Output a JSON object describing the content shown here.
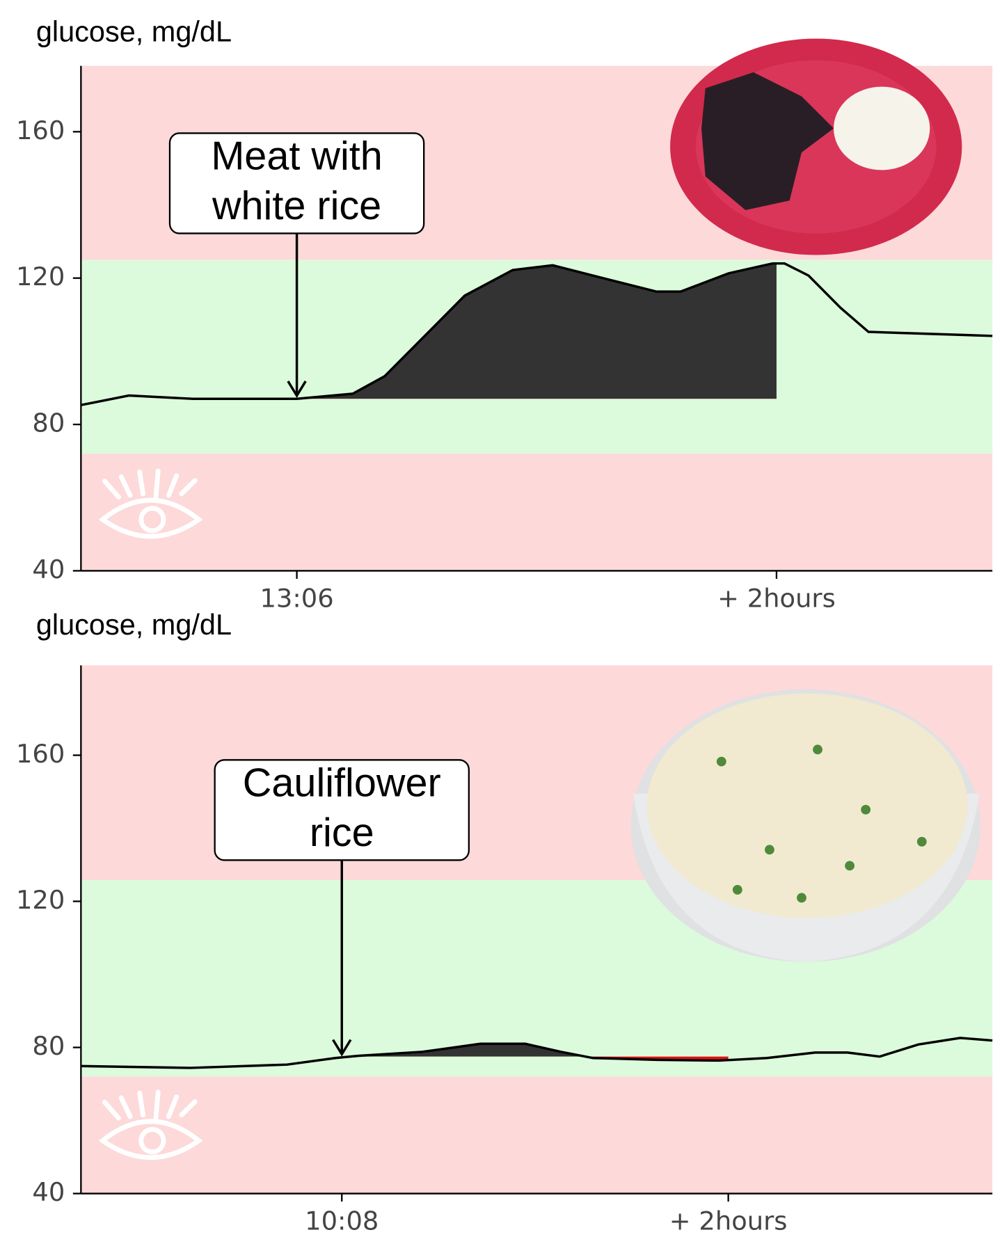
{
  "chart_data": [
    {
      "type": "area",
      "y_label": "glucose, mg/dL",
      "xlim": [
        -54,
        174
      ],
      "xticks": [
        {
          "value": 0,
          "label": "13:06"
        },
        {
          "value": 120,
          "label": "+ 2hours"
        }
      ],
      "ylim": [
        40,
        178
      ],
      "yticks": [
        40,
        80,
        120,
        160
      ],
      "target_range": [
        72,
        125
      ],
      "x": [
        -54,
        -42,
        -26,
        0,
        14,
        22,
        32,
        42,
        54,
        64,
        78,
        90,
        96,
        108,
        119,
        122,
        128,
        136,
        143,
        174
      ],
      "values": [
        85.3,
        87.9,
        87,
        87,
        88.4,
        93.2,
        104.2,
        115.2,
        122.2,
        123.5,
        119.6,
        116.3,
        116.3,
        121.3,
        124,
        124,
        120.7,
        111.9,
        105.3,
        104.2
      ],
      "color": "#000000",
      "shade": {
        "x_range": [
          0,
          120
        ],
        "baseline": 87,
        "color": "#333333",
        "below_color": "#e01010"
      },
      "annotation": {
        "lines": [
          "Meat with",
          "white rice"
        ],
        "x": 0
      }
    },
    {
      "type": "area",
      "y_label": "glucose, mg/dL",
      "xlim": [
        -81,
        202
      ],
      "xticks": [
        {
          "value": 0,
          "label": "10:08"
        },
        {
          "value": 120,
          "label": "+ 2hours"
        }
      ],
      "ylim": [
        40,
        184.6
      ],
      "yticks": [
        40,
        80,
        120,
        160
      ],
      "target_range": [
        72,
        125.8
      ],
      "x": [
        -81,
        -47,
        -17,
        -2,
        5,
        25,
        43,
        57,
        68,
        78,
        98,
        117,
        132,
        147,
        157,
        167,
        179,
        192,
        202
      ],
      "values": [
        74.9,
        74.4,
        75.3,
        77.1,
        77.7,
        78.8,
        81,
        81,
        78.8,
        77.1,
        76.6,
        76.4,
        77.1,
        78.6,
        78.6,
        77.5,
        80.8,
        82.6,
        81.9
      ],
      "color": "#000000",
      "shade": {
        "x_range": [
          0,
          120
        ],
        "baseline": 77.5,
        "color": "#333333",
        "below_color": "#e01010"
      },
      "annotation": {
        "lines": [
          "Cauliflower",
          "rice"
        ],
        "x": 0
      }
    }
  ]
}
